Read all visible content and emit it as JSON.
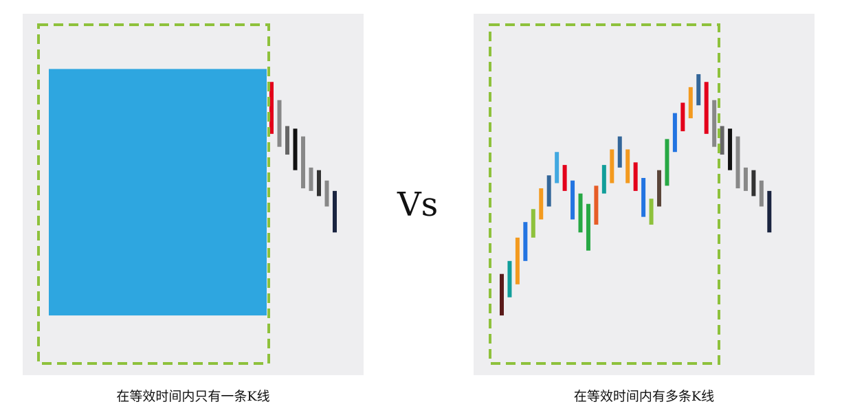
{
  "vs_label": "Vs",
  "chart_data": [
    {
      "type": "bar",
      "description_caption": "在等效时间内只有一条K线",
      "caption": "在等效时间内只有一条K线",
      "highlight_box": "dashed-green",
      "candles": [
        {
          "low": 5,
          "high": 100,
          "color": "#2ea6e0",
          "highlighted": true
        },
        {
          "low": 75,
          "high": 95,
          "color": "#e3001b"
        },
        {
          "low": 70,
          "high": 88,
          "color": "#888888"
        },
        {
          "low": 67,
          "high": 78,
          "color": "#666666"
        },
        {
          "low": 61,
          "high": 77,
          "color": "#111111"
        },
        {
          "low": 54,
          "high": 74,
          "color": "#888888"
        },
        {
          "low": 53,
          "high": 62,
          "color": "#888888"
        },
        {
          "low": 51,
          "high": 61,
          "color": "#333333"
        },
        {
          "low": 47,
          "high": 57,
          "color": "#888888"
        },
        {
          "low": 37,
          "high": 53,
          "color": "#1a2440"
        }
      ]
    },
    {
      "type": "bar",
      "caption": "在等效时间内有多条K线",
      "highlight_box": "dashed-green",
      "candles": [
        {
          "low": 5,
          "high": 21,
          "color": "#5a1a1a"
        },
        {
          "low": 12,
          "high": 26,
          "color": "#119e9a"
        },
        {
          "low": 17,
          "high": 35,
          "color": "#f39a1f"
        },
        {
          "low": 26,
          "high": 41,
          "color": "#2374e1"
        },
        {
          "low": 35,
          "high": 46,
          "color": "#8ec13c"
        },
        {
          "low": 42,
          "high": 54,
          "color": "#f39a1f"
        },
        {
          "low": 47,
          "high": 59,
          "color": "#336699"
        },
        {
          "low": 56,
          "high": 68,
          "color": "#41a8e0"
        },
        {
          "low": 53,
          "high": 63,
          "color": "#e3001b"
        },
        {
          "low": 42,
          "high": 57,
          "color": "#2374e1"
        },
        {
          "low": 37,
          "high": 52,
          "color": "#27a844"
        },
        {
          "low": 30,
          "high": 48,
          "color": "#27a844"
        },
        {
          "low": 40,
          "high": 55,
          "color": "#e65c27"
        },
        {
          "low": 52,
          "high": 63,
          "color": "#119e9a"
        },
        {
          "low": 56,
          "high": 69,
          "color": "#f39a1f"
        },
        {
          "low": 62,
          "high": 74,
          "color": "#336699"
        },
        {
          "low": 56,
          "high": 69,
          "color": "#f39a1f"
        },
        {
          "low": 53,
          "high": 64,
          "color": "#e3001b"
        },
        {
          "low": 43,
          "high": 58,
          "color": "#2374e1"
        },
        {
          "low": 40,
          "high": 50,
          "color": "#8ec13c"
        },
        {
          "low": 47,
          "high": 61,
          "color": "#5b463a"
        },
        {
          "low": 55,
          "high": 73,
          "color": "#27a844"
        },
        {
          "low": 68,
          "high": 83,
          "color": "#2374e1"
        },
        {
          "low": 76,
          "high": 87,
          "color": "#e3001b"
        },
        {
          "low": 81,
          "high": 93,
          "color": "#f39a1f"
        },
        {
          "low": 86,
          "high": 98,
          "color": "#336699"
        },
        {
          "low": 75,
          "high": 95,
          "color": "#e3001b"
        },
        {
          "low": 70,
          "high": 88,
          "color": "#888888"
        },
        {
          "low": 67,
          "high": 78,
          "color": "#666666"
        },
        {
          "low": 61,
          "high": 77,
          "color": "#111111"
        },
        {
          "low": 54,
          "high": 74,
          "color": "#888888"
        },
        {
          "low": 53,
          "high": 62,
          "color": "#888888"
        },
        {
          "low": 51,
          "high": 61,
          "color": "#333333"
        },
        {
          "low": 47,
          "high": 57,
          "color": "#888888"
        },
        {
          "low": 37,
          "high": 53,
          "color": "#1a2440"
        }
      ]
    }
  ]
}
